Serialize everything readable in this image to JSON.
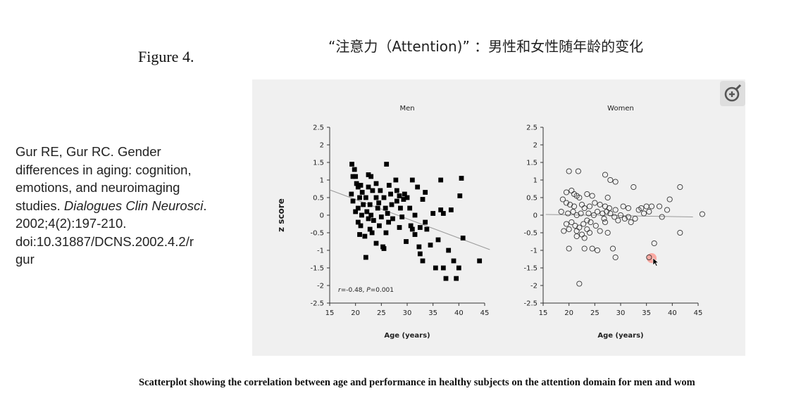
{
  "slide": {
    "title": "“注意力（Attention)” ：男性和女性随年龄的变化",
    "figure_label": "Figure 4.",
    "citation": {
      "lines": [
        "Gur RE, Gur RC. Gender",
        "differences in aging: cognition,",
        "emotions, and neuroimaging"
      ],
      "studies_prefix": "studies. ",
      "journal": "Dialogues Clin Neurosci",
      "journal_suffix": ".",
      "rest_lines": [
        "2002;4(2):197-210.",
        "doi:10.31887/DCNS.2002.4.2/r",
        "gur"
      ]
    },
    "caption": "Scatterplot showing the correlation between age and performance in healthy subjects on the attention domain for men and wom",
    "zoom_icon": "zoom-in-icon"
  },
  "colors": {
    "panel_bg": "#f0f0f0",
    "marker": "#000000",
    "trend": "#9a9a9a",
    "highlight": "#ff8a80"
  },
  "chart_data": [
    {
      "type": "scatter",
      "title": "Men",
      "xlabel": "Age (years)",
      "ylabel": "z score",
      "xlim": [
        15,
        45
      ],
      "ylim": [
        -2.5,
        2.5
      ],
      "xticks": [
        15,
        20,
        25,
        30,
        35,
        40,
        45
      ],
      "yticks": [
        2.5,
        2,
        1.5,
        1,
        0.5,
        0,
        -0.5,
        -1,
        -1.5,
        -2,
        -2.5
      ],
      "marker": "filled-square",
      "annotation": {
        "r_label": "r",
        "r_value": "=-0.48, ",
        "p_label": "P",
        "p_value": "=0.001"
      },
      "trendline": [
        [
          15,
          0.72
        ],
        [
          46,
          -0.98
        ]
      ],
      "points": [
        [
          19.3,
          1.45
        ],
        [
          19.8,
          1.3
        ],
        [
          19.5,
          1.1
        ],
        [
          20.0,
          1.1
        ],
        [
          19.2,
          0.6
        ],
        [
          19.5,
          0.4
        ],
        [
          20.2,
          0.9
        ],
        [
          20.5,
          0.8
        ],
        [
          21.0,
          0.85
        ],
        [
          21.3,
          0.65
        ],
        [
          20.8,
          0.5
        ],
        [
          21.5,
          0.3
        ],
        [
          20.5,
          0.2
        ],
        [
          20.0,
          0.1
        ],
        [
          21.2,
          0.0
        ],
        [
          20.5,
          -0.2
        ],
        [
          21.0,
          -0.3
        ],
        [
          20.8,
          -0.55
        ],
        [
          21.8,
          -0.6
        ],
        [
          22.0,
          -1.2
        ],
        [
          22.5,
          1.15
        ],
        [
          23.0,
          1.1
        ],
        [
          22.5,
          0.8
        ],
        [
          23.3,
          0.7
        ],
        [
          22.0,
          0.5
        ],
        [
          22.8,
          0.3
        ],
        [
          22.2,
          0.1
        ],
        [
          23.0,
          0.0
        ],
        [
          23.5,
          -0.15
        ],
        [
          22.5,
          -0.1
        ],
        [
          22.8,
          -0.4
        ],
        [
          23.2,
          -0.5
        ],
        [
          24.0,
          0.5
        ],
        [
          24.5,
          0.35
        ],
        [
          24.0,
          0.9
        ],
        [
          24.8,
          0.7
        ],
        [
          24.3,
          0.2
        ],
        [
          25.0,
          -0.05
        ],
        [
          24.6,
          -0.3
        ],
        [
          24.0,
          -0.8
        ],
        [
          25.3,
          -0.9
        ],
        [
          25.5,
          0.5
        ],
        [
          26.0,
          1.45
        ],
        [
          25.8,
          0.2
        ],
        [
          26.2,
          0.05
        ],
        [
          26.4,
          -0.2
        ],
        [
          25.9,
          -0.5
        ],
        [
          25.5,
          -0.95
        ],
        [
          26.5,
          0.85
        ],
        [
          26.8,
          0.6
        ],
        [
          27.0,
          0.3
        ],
        [
          27.2,
          -0.1
        ],
        [
          27.8,
          1.0
        ],
        [
          28.0,
          0.7
        ],
        [
          28.5,
          0.55
        ],
        [
          28.0,
          0.4
        ],
        [
          28.7,
          0.2
        ],
        [
          29.0,
          -0.05
        ],
        [
          28.5,
          -0.35
        ],
        [
          29.3,
          0.45
        ],
        [
          29.5,
          0.6
        ],
        [
          30.0,
          0.5
        ],
        [
          29.8,
          -0.75
        ],
        [
          30.5,
          0.2
        ],
        [
          30.7,
          -0.3
        ],
        [
          31.0,
          1.0
        ],
        [
          31.5,
          0.0
        ],
        [
          31.0,
          -0.4
        ],
        [
          31.5,
          -0.55
        ],
        [
          32.0,
          0.8
        ],
        [
          32.3,
          -0.9
        ],
        [
          32.5,
          -1.1
        ],
        [
          33.0,
          -1.3
        ],
        [
          32.5,
          -0.35
        ],
        [
          33.5,
          0.65
        ],
        [
          33.0,
          0.45
        ],
        [
          33.5,
          -0.2
        ],
        [
          34.5,
          -0.85
        ],
        [
          35.0,
          0.05
        ],
        [
          35.5,
          -1.5
        ],
        [
          36.0,
          -0.7
        ],
        [
          36.5,
          1.0
        ],
        [
          37.0,
          -1.5
        ],
        [
          37.5,
          -1.8
        ],
        [
          37.0,
          0.05
        ],
        [
          38.0,
          -1.0
        ],
        [
          39.0,
          -1.3
        ],
        [
          39.5,
          -1.8
        ],
        [
          40.0,
          -1.5
        ],
        [
          40.5,
          1.05
        ],
        [
          40.2,
          0.55
        ],
        [
          40.8,
          -0.65
        ],
        [
          44.0,
          -1.3
        ],
        [
          36.5,
          0.15
        ],
        [
          38.5,
          0.15
        ],
        [
          33.8,
          -0.4
        ]
      ]
    },
    {
      "type": "scatter",
      "title": "Women",
      "xlabel": "Age (years)",
      "ylabel": "",
      "xlim": [
        15,
        45
      ],
      "ylim": [
        -2.5,
        2.5
      ],
      "xticks": [
        15,
        20,
        25,
        30,
        35,
        40,
        45
      ],
      "yticks": [
        2.5,
        2,
        1.5,
        1,
        0.5,
        0,
        -0.5,
        -1,
        -1.5,
        -2,
        -2.5
      ],
      "marker": "open-circle",
      "trendline": [
        [
          15.5,
          0.02
        ],
        [
          44,
          -0.05
        ]
      ],
      "highlight_point": [
        36.0,
        -1.22
      ],
      "points": [
        [
          20.0,
          1.25
        ],
        [
          21.8,
          1.25
        ],
        [
          27.0,
          1.15
        ],
        [
          28.0,
          1.0
        ],
        [
          29.0,
          0.95
        ],
        [
          32.5,
          0.8
        ],
        [
          41.5,
          0.8
        ],
        [
          19.5,
          0.65
        ],
        [
          20.5,
          0.7
        ],
        [
          21.0,
          0.6
        ],
        [
          21.5,
          0.55
        ],
        [
          22.0,
          0.5
        ],
        [
          23.5,
          0.6
        ],
        [
          24.5,
          0.55
        ],
        [
          27.5,
          0.5
        ],
        [
          39.5,
          0.45
        ],
        [
          18.8,
          0.45
        ],
        [
          19.5,
          0.35
        ],
        [
          20.2,
          0.3
        ],
        [
          21.0,
          0.25
        ],
        [
          22.5,
          0.3
        ],
        [
          23.0,
          0.2
        ],
        [
          24.0,
          0.25
        ],
        [
          25.0,
          0.35
        ],
        [
          26.0,
          0.3
        ],
        [
          27.0,
          0.25
        ],
        [
          27.8,
          0.2
        ],
        [
          29.0,
          0.15
        ],
        [
          30.5,
          0.25
        ],
        [
          31.5,
          0.2
        ],
        [
          33.5,
          0.15
        ],
        [
          34.0,
          0.2
        ],
        [
          35.0,
          0.25
        ],
        [
          36.0,
          0.25
        ],
        [
          37.5,
          0.25
        ],
        [
          39.0,
          0.15
        ],
        [
          18.5,
          0.1
        ],
        [
          19.8,
          0.05
        ],
        [
          20.8,
          0.1
        ],
        [
          21.5,
          0.0
        ],
        [
          22.3,
          0.05
        ],
        [
          23.8,
          0.05
        ],
        [
          24.8,
          0.0
        ],
        [
          25.5,
          0.1
        ],
        [
          26.5,
          0.05
        ],
        [
          28.0,
          0.05
        ],
        [
          28.8,
          -0.05
        ],
        [
          30.0,
          0.0
        ],
        [
          31.5,
          -0.05
        ],
        [
          32.8,
          -0.1
        ],
        [
          34.5,
          0.05
        ],
        [
          35.5,
          0.1
        ],
        [
          38.0,
          -0.05
        ],
        [
          45.8,
          0.03
        ],
        [
          19.5,
          -0.25
        ],
        [
          20.5,
          -0.2
        ],
        [
          21.2,
          -0.3
        ],
        [
          22.0,
          -0.35
        ],
        [
          22.8,
          -0.25
        ],
        [
          23.5,
          -0.15
        ],
        [
          24.2,
          -0.2
        ],
        [
          25.2,
          -0.3
        ],
        [
          27.0,
          -0.2
        ],
        [
          29.5,
          -0.15
        ],
        [
          32.0,
          -0.2
        ],
        [
          19.0,
          -0.45
        ],
        [
          20.0,
          -0.4
        ],
        [
          21.5,
          -0.45
        ],
        [
          22.5,
          -0.55
        ],
        [
          23.0,
          -0.65
        ],
        [
          24.0,
          -0.5
        ],
        [
          26.0,
          -0.45
        ],
        [
          27.5,
          -0.5
        ],
        [
          41.5,
          -0.5
        ],
        [
          36.5,
          -0.8
        ],
        [
          20.0,
          -0.95
        ],
        [
          23.0,
          -0.95
        ],
        [
          24.5,
          -0.95
        ],
        [
          25.5,
          -1.0
        ],
        [
          28.5,
          -0.95
        ],
        [
          29.0,
          -1.2
        ],
        [
          35.5,
          -1.2
        ],
        [
          22.0,
          -1.95
        ],
        [
          21.5,
          -0.6
        ],
        [
          23.5,
          -0.4
        ],
        [
          26.8,
          -0.1
        ],
        [
          27.3,
          0.1
        ],
        [
          30.8,
          -0.1
        ]
      ]
    }
  ]
}
